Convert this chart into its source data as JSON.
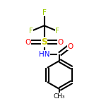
{
  "bg_color": "#ffffff",
  "line_color": "#000000",
  "F_color": "#99cc00",
  "O_color": "#ff0000",
  "S_color": "#cccc00",
  "N_color": "#0000ff",
  "line_width": 1.5,
  "figsize": [
    1.5,
    1.5
  ],
  "dpi": 100,
  "xlim": [
    0.05,
    0.95
  ],
  "ylim": [
    0.02,
    0.98
  ]
}
